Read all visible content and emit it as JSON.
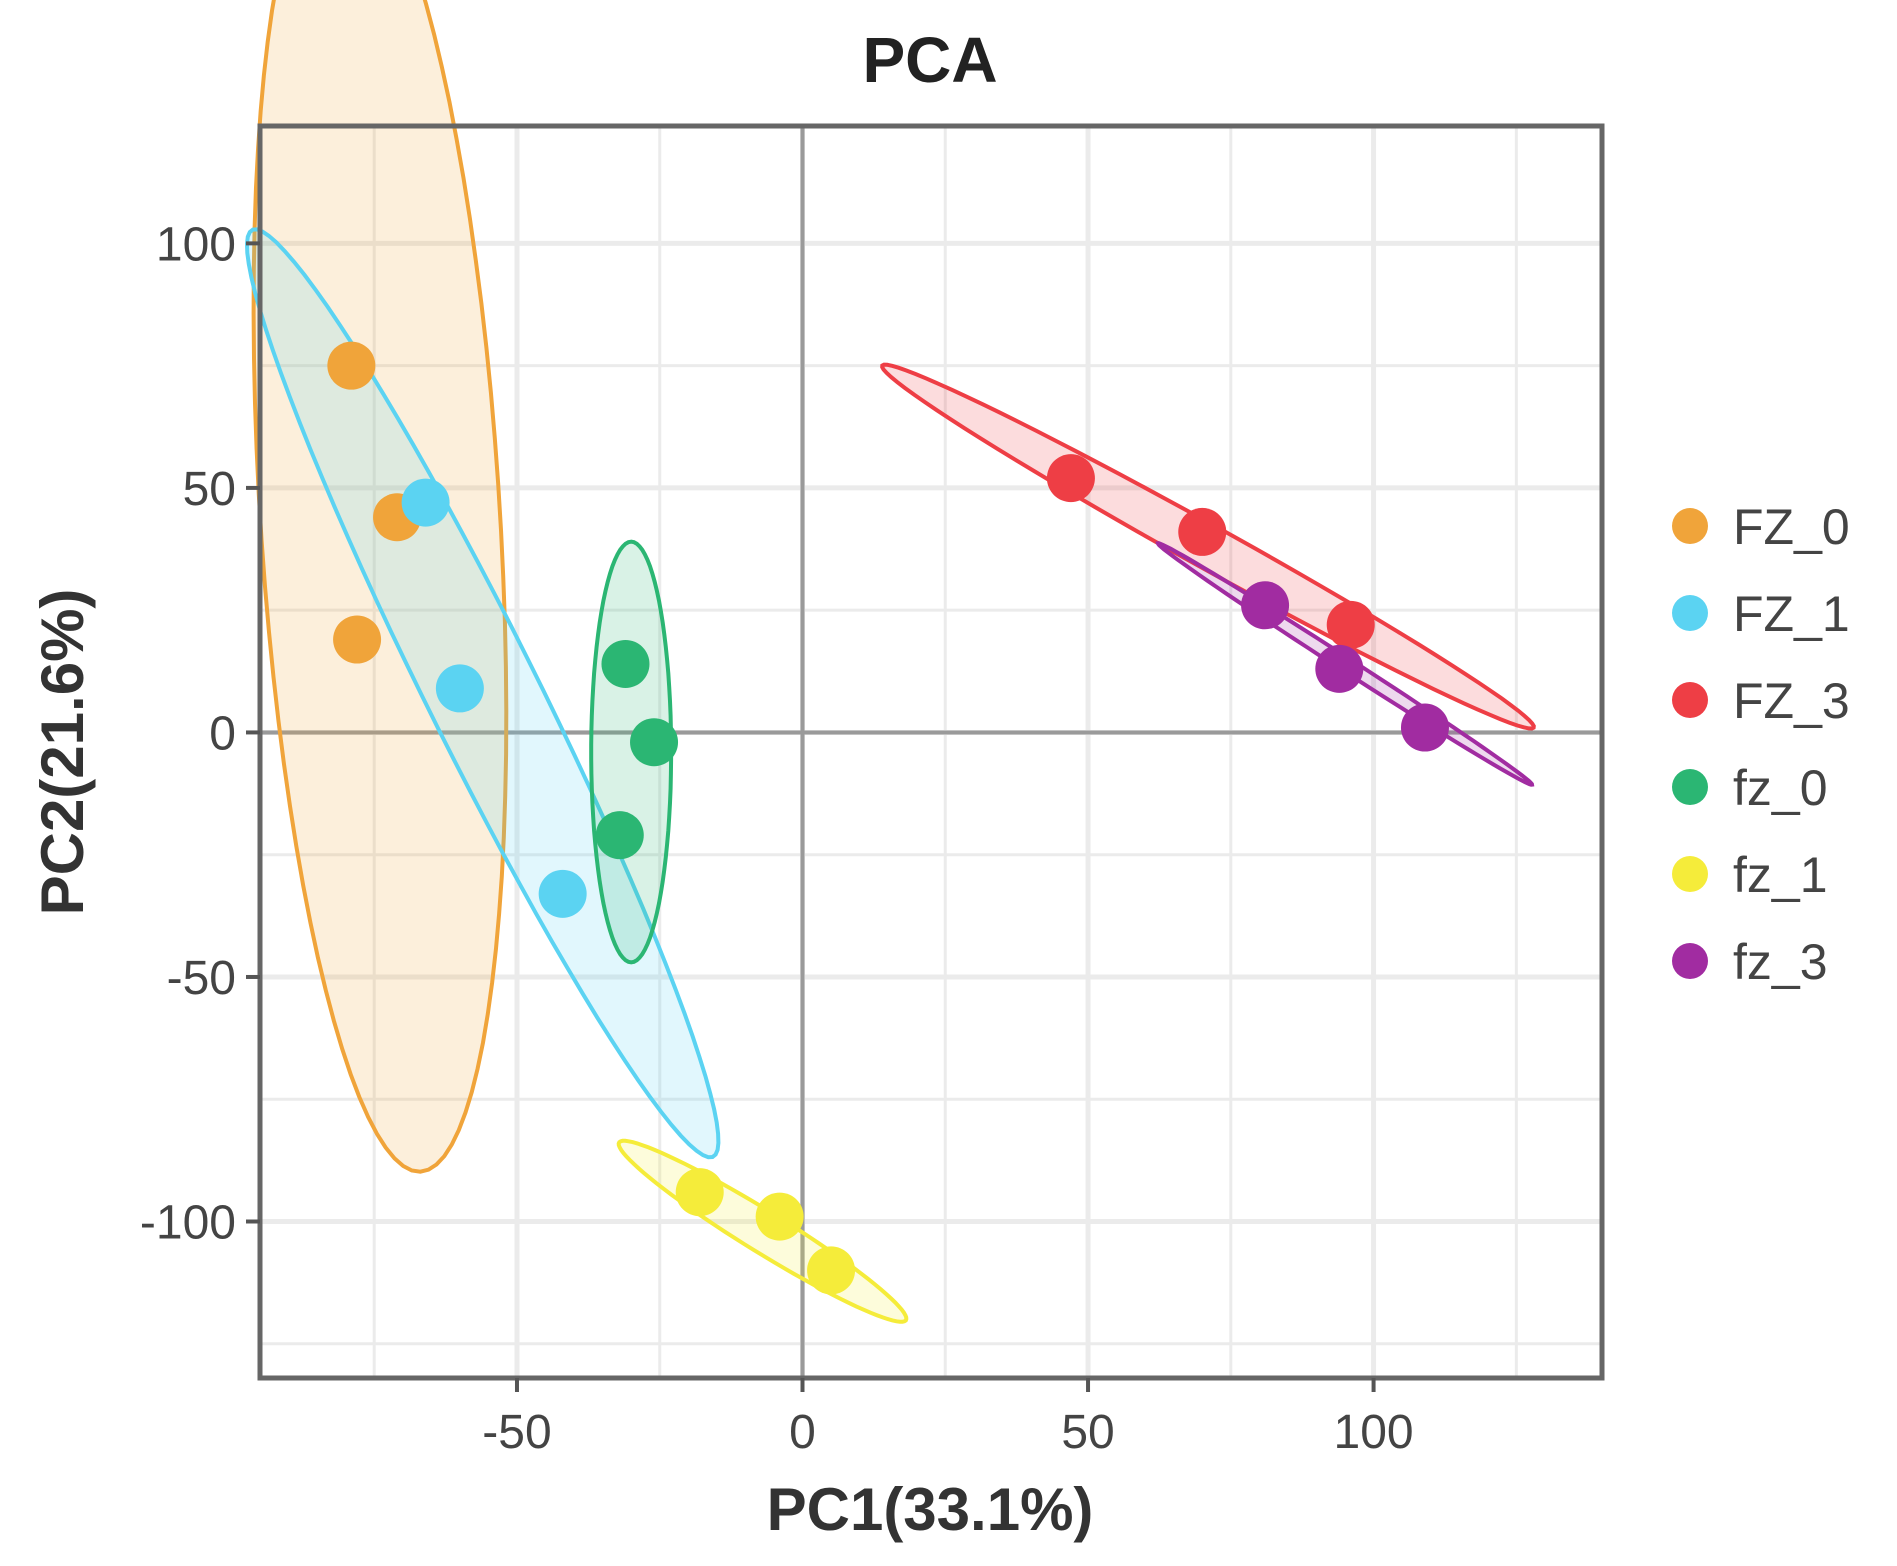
{
  "chart_data": {
    "type": "scatter",
    "title": "PCA",
    "xlabel": "PC1(33.1%)",
    "ylabel": "PC2(21.6%)",
    "xlim": [
      -95,
      140
    ],
    "ylim": [
      -132,
      124
    ],
    "xticks": [
      -50,
      0,
      50,
      100
    ],
    "yticks": [
      -100,
      -50,
      0,
      50,
      100
    ],
    "xtick_labels": [
      "-50",
      "0",
      "50",
      "100"
    ],
    "ytick_labels": [
      "-100",
      "-50",
      "0",
      "50",
      "100"
    ],
    "grid": true,
    "legend_position": "right",
    "series": [
      {
        "name": "FZ_0",
        "color": "#F0A43A",
        "points": [
          [
            -79,
            75
          ],
          [
            -71,
            44
          ],
          [
            -78,
            19
          ]
        ],
        "ellipse": {
          "center": [
            -74,
            45
          ],
          "semi_major": 135,
          "semi_minor": 21,
          "angle_deg": 93
        }
      },
      {
        "name": "FZ_1",
        "color": "#5BD3F2",
        "points": [
          [
            -66,
            47
          ],
          [
            -60,
            9
          ],
          [
            -42,
            -33
          ]
        ],
        "ellipse": {
          "center": [
            -56,
            8
          ],
          "semi_major": 103,
          "semi_minor": 10,
          "angle_deg": 113
        }
      },
      {
        "name": "FZ_3",
        "color": "#EE3E45",
        "points": [
          [
            47,
            52
          ],
          [
            70,
            41
          ],
          [
            96,
            22
          ]
        ],
        "ellipse": {
          "center": [
            71,
            38
          ],
          "semi_major": 68,
          "semi_minor": 4.2,
          "angle_deg": -33
        }
      },
      {
        "name": "fz_0",
        "color": "#2BB673",
        "points": [
          [
            -31,
            14
          ],
          [
            -26,
            -2
          ],
          [
            -32,
            -21
          ]
        ],
        "ellipse": {
          "center": [
            -30,
            -4
          ],
          "semi_major": 43,
          "semi_minor": 7,
          "angle_deg": 90
        }
      },
      {
        "name": "fz_1",
        "color": "#F5EC3A",
        "points": [
          [
            -18,
            -94
          ],
          [
            -4,
            -99
          ],
          [
            5,
            -110
          ]
        ],
        "ellipse": {
          "center": [
            -7,
            -102
          ],
          "semi_major": 31,
          "semi_minor": 4,
          "angle_deg": -36
        }
      },
      {
        "name": "fz_3",
        "color": "#A12CA1",
        "points": [
          [
            81,
            26
          ],
          [
            94,
            13
          ],
          [
            109,
            1
          ]
        ],
        "ellipse": {
          "center": [
            95,
            14
          ],
          "semi_major": 41,
          "semi_minor": 1.3,
          "angle_deg": -37
        }
      }
    ]
  }
}
